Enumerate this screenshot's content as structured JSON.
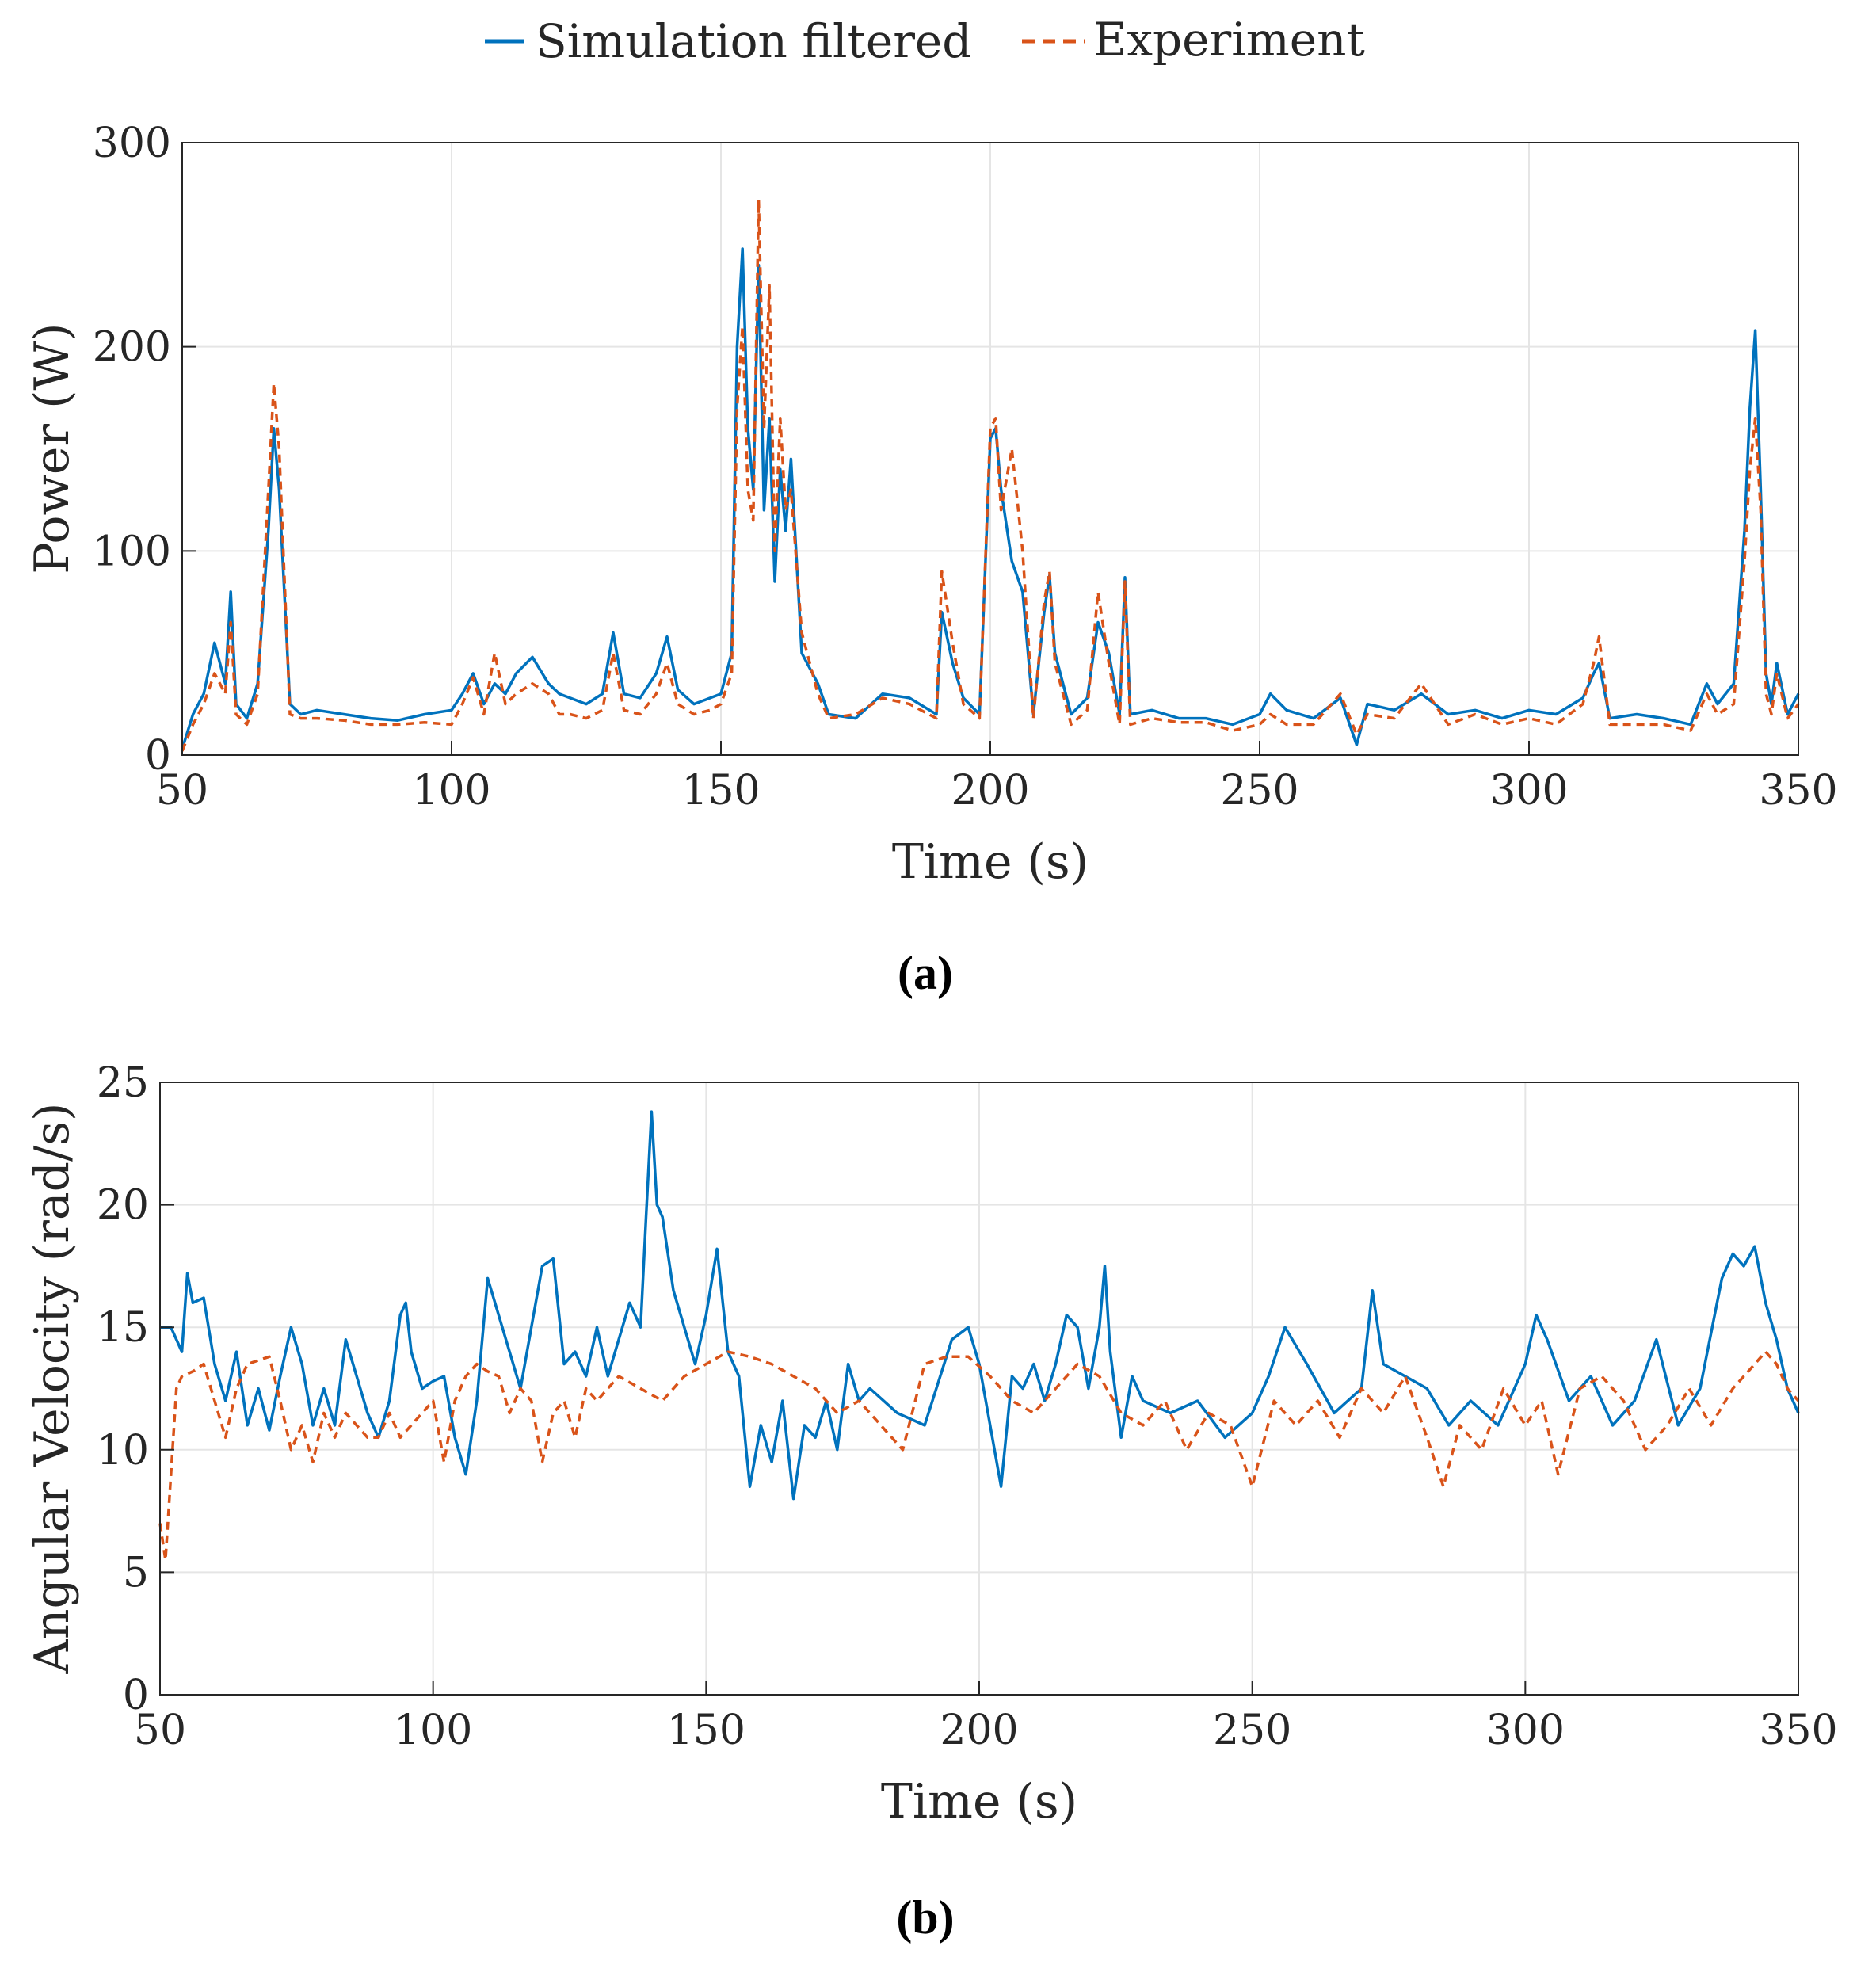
{
  "legend": {
    "entries": [
      {
        "name": "Simulation filtered",
        "color": "#0072BD",
        "style": "solid"
      },
      {
        "name": "Experiment",
        "color": "#D95319",
        "style": "dashed"
      }
    ]
  },
  "chart_data": [
    {
      "type": "line",
      "caption": "(a)",
      "xlabel": "Time (s)",
      "ylabel": "Power (W)",
      "xlim": [
        50,
        350
      ],
      "ylim": [
        0,
        300
      ],
      "xticks": [
        "50",
        "100",
        "150",
        "200",
        "250",
        "300",
        "350"
      ],
      "yticks": [
        "0",
        "100",
        "200",
        "300"
      ],
      "grid": true,
      "series": [
        {
          "name": "Simulation filtered",
          "x": [
            50,
            52,
            54,
            56,
            58,
            59,
            60,
            62,
            64,
            66,
            67,
            68,
            70,
            72,
            75,
            80,
            85,
            90,
            95,
            100,
            102,
            104,
            106,
            108,
            110,
            112,
            115,
            118,
            120,
            122,
            125,
            128,
            130,
            132,
            135,
            138,
            140,
            142,
            145,
            148,
            150,
            152,
            153,
            154,
            155,
            156,
            157,
            158,
            159,
            160,
            161,
            162,
            163,
            165,
            168,
            170,
            175,
            180,
            185,
            190,
            191,
            193,
            195,
            198,
            200,
            201,
            202,
            204,
            206,
            208,
            210,
            211,
            212,
            215,
            218,
            220,
            222,
            224,
            225,
            226,
            230,
            235,
            240,
            245,
            250,
            252,
            255,
            260,
            265,
            268,
            270,
            275,
            280,
            285,
            290,
            295,
            300,
            305,
            310,
            312,
            313,
            315,
            320,
            325,
            330,
            333,
            335,
            338,
            340,
            341,
            342,
            343,
            344,
            345,
            346,
            348,
            350
          ],
          "values": [
            3,
            20,
            30,
            55,
            35,
            80,
            25,
            18,
            35,
            110,
            160,
            130,
            25,
            20,
            22,
            20,
            18,
            17,
            20,
            22,
            30,
            40,
            25,
            35,
            30,
            40,
            48,
            35,
            30,
            28,
            25,
            30,
            60,
            30,
            28,
            40,
            58,
            32,
            25,
            28,
            30,
            50,
            200,
            248,
            160,
            130,
            240,
            120,
            165,
            85,
            140,
            110,
            145,
            50,
            35,
            20,
            18,
            30,
            28,
            20,
            70,
            45,
            28,
            20,
            155,
            160,
            130,
            95,
            80,
            20,
            70,
            88,
            50,
            20,
            28,
            65,
            50,
            20,
            87,
            20,
            22,
            18,
            18,
            15,
            20,
            30,
            22,
            18,
            28,
            5,
            25,
            22,
            30,
            20,
            22,
            18,
            22,
            20,
            28,
            40,
            45,
            18,
            20,
            18,
            15,
            35,
            25,
            35,
            110,
            170,
            208,
            130,
            40,
            25,
            45,
            20,
            30
          ]
        },
        {
          "name": "Experiment",
          "x": [
            50,
            52,
            54,
            56,
            58,
            59,
            60,
            62,
            64,
            66,
            67,
            68,
            70,
            72,
            75,
            80,
            85,
            90,
            95,
            100,
            102,
            104,
            106,
            108,
            110,
            112,
            115,
            118,
            120,
            122,
            125,
            128,
            130,
            132,
            135,
            138,
            140,
            142,
            145,
            148,
            150,
            152,
            153,
            154,
            155,
            156,
            157,
            158,
            159,
            160,
            161,
            162,
            163,
            165,
            168,
            170,
            175,
            180,
            185,
            190,
            191,
            193,
            195,
            198,
            200,
            201,
            202,
            204,
            206,
            208,
            210,
            211,
            212,
            215,
            218,
            220,
            222,
            224,
            225,
            226,
            230,
            235,
            240,
            245,
            250,
            252,
            255,
            260,
            265,
            268,
            270,
            275,
            280,
            285,
            290,
            295,
            300,
            305,
            310,
            312,
            313,
            315,
            320,
            325,
            330,
            333,
            335,
            338,
            340,
            341,
            342,
            343,
            344,
            345,
            346,
            348,
            350
          ],
          "values": [
            2,
            15,
            25,
            40,
            30,
            65,
            20,
            15,
            30,
            130,
            182,
            150,
            20,
            18,
            18,
            17,
            15,
            15,
            16,
            15,
            25,
            38,
            20,
            50,
            25,
            30,
            35,
            30,
            20,
            20,
            18,
            22,
            50,
            22,
            20,
            30,
            45,
            25,
            20,
            22,
            25,
            40,
            170,
            210,
            130,
            115,
            272,
            160,
            230,
            100,
            165,
            120,
            130,
            60,
            30,
            18,
            20,
            28,
            25,
            18,
            90,
            55,
            25,
            18,
            160,
            165,
            120,
            150,
            100,
            18,
            75,
            90,
            45,
            15,
            22,
            80,
            45,
            15,
            85,
            15,
            18,
            16,
            16,
            12,
            15,
            20,
            15,
            15,
            30,
            10,
            20,
            18,
            35,
            15,
            20,
            15,
            18,
            15,
            25,
            45,
            58,
            15,
            15,
            15,
            12,
            30,
            20,
            25,
            95,
            140,
            165,
            120,
            30,
            20,
            40,
            18,
            25
          ]
        }
      ]
    },
    {
      "type": "line",
      "caption": "(b)",
      "xlabel": "Time (s)",
      "ylabel": "Angular Velocity (rad/s)",
      "xlim": [
        50,
        350
      ],
      "ylim": [
        0,
        25
      ],
      "xticks": [
        "50",
        "100",
        "150",
        "200",
        "250",
        "300",
        "350"
      ],
      "yticks": [
        "0",
        "5",
        "10",
        "15",
        "20",
        "25"
      ],
      "grid": true,
      "series": [
        {
          "name": "Simulation filtered",
          "x": [
            50,
            52,
            54,
            55,
            56,
            58,
            60,
            62,
            64,
            66,
            68,
            70,
            72,
            74,
            76,
            78,
            80,
            82,
            84,
            86,
            88,
            90,
            92,
            94,
            95,
            96,
            98,
            100,
            102,
            104,
            106,
            108,
            110,
            112,
            114,
            116,
            118,
            120,
            122,
            124,
            126,
            128,
            130,
            132,
            134,
            136,
            138,
            139,
            140,
            141,
            142,
            144,
            146,
            148,
            150,
            152,
            154,
            156,
            158,
            160,
            162,
            164,
            166,
            168,
            170,
            172,
            174,
            176,
            178,
            180,
            185,
            190,
            195,
            198,
            200,
            202,
            204,
            206,
            208,
            210,
            212,
            214,
            216,
            218,
            220,
            222,
            223,
            224,
            226,
            228,
            230,
            235,
            240,
            245,
            250,
            253,
            256,
            260,
            265,
            270,
            272,
            274,
            278,
            282,
            286,
            290,
            295,
            300,
            302,
            304,
            308,
            312,
            316,
            320,
            324,
            328,
            332,
            336,
            338,
            340,
            342,
            344,
            346,
            348,
            350
          ],
          "values": [
            15,
            15,
            14,
            17.2,
            16,
            16.2,
            13.5,
            12,
            14,
            11,
            12.5,
            10.8,
            13,
            15,
            13.5,
            11,
            12.5,
            11,
            14.5,
            13,
            11.5,
            10.5,
            12,
            15.5,
            16,
            14,
            12.5,
            12.8,
            13,
            10.5,
            9,
            12,
            17,
            15.5,
            14,
            12.5,
            15,
            17.5,
            17.8,
            13.5,
            14,
            13,
            15,
            13,
            14.5,
            16,
            15,
            19.5,
            23.8,
            20,
            19.5,
            16.5,
            15,
            13.5,
            15.5,
            18.2,
            14,
            13,
            8.5,
            11,
            9.5,
            12,
            8,
            11,
            10.5,
            12,
            10,
            13.5,
            12,
            12.5,
            11.5,
            11,
            14.5,
            15,
            13.5,
            11,
            8.5,
            13,
            12.5,
            13.5,
            12,
            13.5,
            15.5,
            15,
            12.5,
            15,
            17.5,
            14,
            10.5,
            13,
            12,
            11.5,
            12,
            10.5,
            11.5,
            13,
            15,
            13.5,
            11.5,
            12.5,
            16.5,
            13.5,
            13,
            12.5,
            11,
            12,
            11,
            13.5,
            15.5,
            14.5,
            12,
            13,
            11,
            12,
            14.5,
            11,
            12.5,
            17,
            18,
            17.5,
            18.3,
            16,
            14.5,
            12.5,
            11.5
          ]
        },
        {
          "name": "Experiment",
          "x": [
            50,
            51,
            52,
            53,
            54,
            56,
            58,
            60,
            62,
            64,
            66,
            70,
            72,
            74,
            76,
            78,
            80,
            82,
            84,
            86,
            88,
            90,
            92,
            94,
            96,
            98,
            100,
            102,
            104,
            106,
            108,
            110,
            112,
            114,
            116,
            118,
            120,
            122,
            124,
            126,
            128,
            130,
            134,
            138,
            142,
            146,
            150,
            154,
            158,
            162,
            166,
            170,
            174,
            178,
            182,
            186,
            190,
            194,
            198,
            202,
            206,
            210,
            214,
            218,
            222,
            226,
            230,
            234,
            238,
            242,
            246,
            250,
            254,
            258,
            262,
            266,
            270,
            274,
            278,
            282,
            285,
            288,
            292,
            296,
            300,
            303,
            306,
            310,
            314,
            318,
            322,
            326,
            330,
            334,
            338,
            342,
            344,
            346,
            348,
            350
          ],
          "values": [
            7,
            5.5,
            9,
            12.5,
            13,
            13.2,
            13.5,
            12,
            10.5,
            12.5,
            13.5,
            13.8,
            12,
            10,
            11,
            9.5,
            11.5,
            10.5,
            11.5,
            11,
            10.5,
            10.5,
            11.5,
            10.5,
            11,
            11.5,
            12,
            9.5,
            12,
            13,
            13.5,
            13.2,
            13,
            11.5,
            12.5,
            12,
            9.5,
            11.5,
            12,
            10.5,
            12.5,
            12,
            13,
            12.5,
            12,
            13,
            13.5,
            14,
            13.8,
            13.5,
            13,
            12.5,
            11.5,
            12,
            11,
            10,
            13.5,
            13.8,
            13.8,
            13,
            12,
            11.5,
            12.5,
            13.5,
            13,
            11.5,
            11,
            12,
            10,
            11.5,
            11,
            8.5,
            12,
            11,
            12,
            10.5,
            12.5,
            11.5,
            13,
            10.5,
            8.5,
            11,
            10,
            12.5,
            11,
            12,
            9,
            12.5,
            13,
            12,
            10,
            11,
            12.5,
            11,
            12.5,
            13.5,
            14,
            13.5,
            12.5,
            12
          ]
        }
      ]
    }
  ]
}
